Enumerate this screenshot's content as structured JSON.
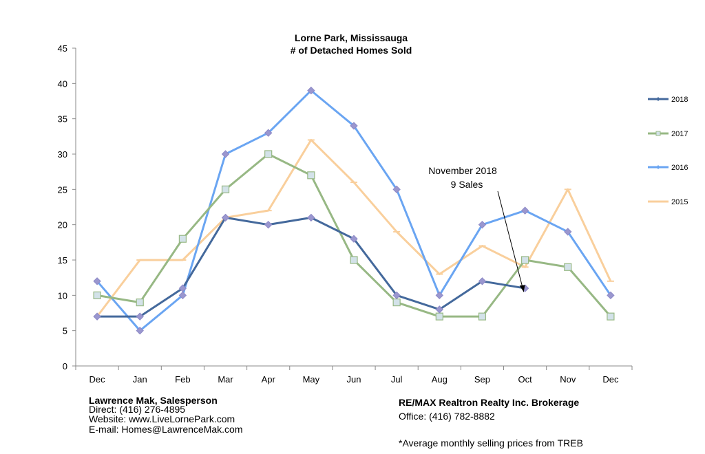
{
  "chart_data": {
    "type": "line",
    "title": "Lorne Park, Mississauga",
    "subtitle": "# of Detached Homes Sold",
    "categories": [
      "Dec",
      "Jan",
      "Feb",
      "Mar",
      "Apr",
      "May",
      "Jun",
      "Jul",
      "Aug",
      "Sep",
      "Oct",
      "Nov",
      "Dec"
    ],
    "ylim": [
      0,
      45
    ],
    "yticks": [
      0,
      5,
      10,
      15,
      20,
      25,
      30,
      35,
      40,
      45
    ],
    "grid": false,
    "legend_position": "right",
    "series": [
      {
        "name": "2018",
        "color": "#44699c",
        "marker": "diamond",
        "values": [
          7,
          7,
          11,
          21,
          20,
          21,
          18,
          10,
          8,
          12,
          11,
          null,
          null
        ]
      },
      {
        "name": "2017",
        "color": "#97b884",
        "marker": "square",
        "values": [
          10,
          9,
          18,
          25,
          30,
          27,
          15,
          9,
          7,
          7,
          15,
          14,
          7
        ]
      },
      {
        "name": "2016",
        "color": "#6aa5f2",
        "marker": "diamond",
        "values": [
          12,
          5,
          10,
          30,
          33,
          39,
          34,
          25,
          10,
          20,
          22,
          19,
          10
        ]
      },
      {
        "name": "2015",
        "color": "#f9cf9c",
        "marker": "dash",
        "values": [
          7,
          15,
          15,
          21,
          22,
          32,
          26,
          19,
          13,
          17,
          14,
          25,
          12
        ]
      }
    ],
    "annotation": {
      "lines": [
        "November 2018",
        "9 Sales"
      ],
      "points_to_category_index": 10,
      "points_to_value": 10.5
    }
  },
  "footer": {
    "agent_name": "Lawrence Mak, Salesperson",
    "direct": "Direct:  (416) 276-4895",
    "website": "Website:  www.LiveLornePark.com",
    "email": "E-mail:  Homes@LawrenceMak.com",
    "brokerage": "RE/MAX Realtron Realty Inc. Brokerage",
    "office": "Office: (416) 782-8882",
    "note": "*Average monthly selling prices from TREB"
  }
}
